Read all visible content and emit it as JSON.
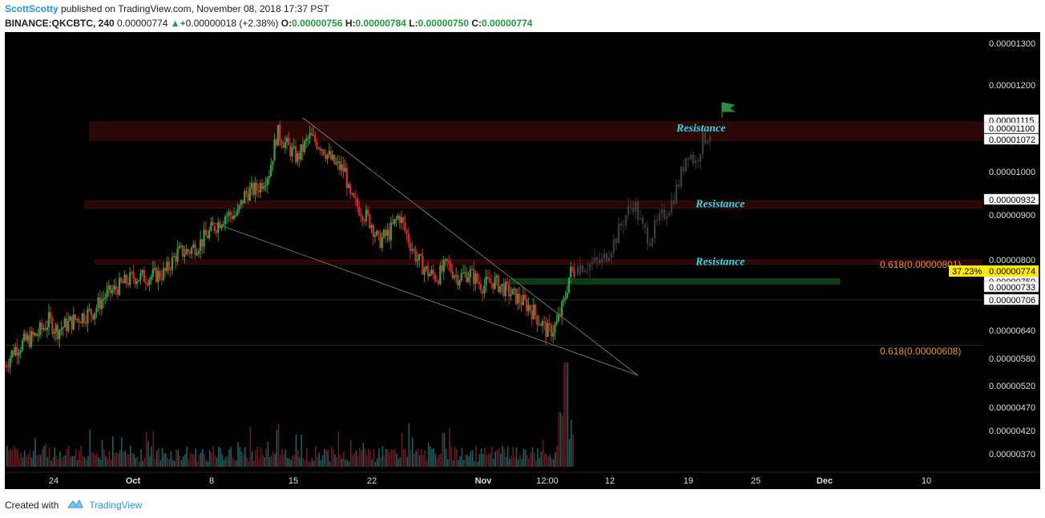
{
  "header": {
    "author": "ScottScotty",
    "published_text": "published on TradingView.com, November 08, 2018 17:37 PST",
    "symbol": "BINANCE:QKCBTC, 240",
    "last": "0.00000774",
    "change_arrow": "▲",
    "change": "+0.00000018 (+2.38%)",
    "o_label": "O:",
    "o_value": "0.00000756",
    "h_label": "H:",
    "h_value": "0.00000784",
    "l_label": "L:",
    "l_value": "0.00000750",
    "c_label": "C:",
    "c_value": "0.00000774"
  },
  "footer": {
    "created_with": "Created with",
    "brand": "TradingView"
  },
  "colors": {
    "background": "#000000",
    "up": "#2e9b3f",
    "down": "#d0262d",
    "resistance_label": "#2fd6e8",
    "fib_label": "#e8902a",
    "price_badge": "#ffea00",
    "zone_fill": "#2a0707",
    "support_zone": "#0d3a12"
  },
  "chart_data": {
    "type": "candlestick",
    "x_ticks": [
      "24",
      "Oct",
      "8",
      "15",
      "22",
      "Nov",
      "12:00",
      "12",
      "19",
      "25",
      "Dec",
      "10"
    ],
    "y_ticks": [
      "0.00001300",
      "0.00001200",
      "0.00001000",
      "0.00000900",
      "0.00000800",
      "0.00000640",
      "0.00000580",
      "0.00000520",
      "0.00000470",
      "0.00000420",
      "0.00000370"
    ],
    "y_labels_highlighted": [
      "0.00001115",
      "0.00001100",
      "0.00001072",
      "0.00000932",
      "0.00000750",
      "0.00000733",
      "0.00000706"
    ],
    "current_price": "0.00000774",
    "current_percent": "37.23%",
    "annotations": [
      {
        "text": "Resistance",
        "price": 1.1e-05
      },
      {
        "text": "Resistance",
        "price": 9.25e-06
      },
      {
        "text": "Resistance",
        "price": 7.95e-06
      }
    ],
    "fib_labels": [
      "0.618(0.00000801)",
      "0.618(0.00000608)"
    ],
    "resistance_zones": [
      {
        "from": 1.072e-05,
        "to": 1.115e-05
      },
      {
        "from": 9.15e-06,
        "to": 9.32e-06
      },
      {
        "from": 7.9e-06,
        "to": 8e-06
      }
    ],
    "support_zone": {
      "from": 7.44e-06,
      "to": 7.56e-06
    },
    "price_path": [
      [
        0,
        5.65e-06
      ],
      [
        12,
        6e-06
      ],
      [
        25,
        6.15e-06
      ],
      [
        40,
        6.3e-06
      ],
      [
        55,
        6.6e-06
      ],
      [
        65,
        6.4e-06
      ],
      [
        80,
        6.55e-06
      ],
      [
        95,
        6.7e-06
      ],
      [
        110,
        6.8e-06
      ],
      [
        125,
        7.15e-06
      ],
      [
        140,
        7.35e-06
      ],
      [
        160,
        7.6e-06
      ],
      [
        180,
        7.6e-06
      ],
      [
        200,
        7.7e-06
      ],
      [
        215,
        8.15e-06
      ],
      [
        230,
        8.2e-06
      ],
      [
        245,
        8.4e-06
      ],
      [
        260,
        8.7e-06
      ],
      [
        275,
        9e-06
      ],
      [
        290,
        9e-06
      ],
      [
        300,
        9.5e-06
      ],
      [
        315,
        9.6e-06
      ],
      [
        330,
        1e-05
      ],
      [
        340,
        1.09e-05
      ],
      [
        352,
        1.06e-05
      ],
      [
        365,
        1.03e-05
      ],
      [
        380,
        1.08e-05
      ],
      [
        395,
        1.06e-05
      ],
      [
        410,
        1.02e-05
      ],
      [
        425,
        1e-05
      ],
      [
        430,
        9.4e-06
      ],
      [
        445,
        9.1e-06
      ],
      [
        458,
        8.8e-06
      ],
      [
        466,
        8.4e-06
      ],
      [
        480,
        8.6e-06
      ],
      [
        492,
        9e-06
      ],
      [
        505,
        8.4e-06
      ],
      [
        515,
        8e-06
      ],
      [
        528,
        7.7e-06
      ],
      [
        540,
        7.6e-06
      ],
      [
        552,
        7.9e-06
      ],
      [
        565,
        7.6e-06
      ],
      [
        580,
        7.7e-06
      ],
      [
        595,
        7.4e-06
      ],
      [
        610,
        7.5e-06
      ],
      [
        625,
        7.3e-06
      ],
      [
        640,
        7.1e-06
      ],
      [
        655,
        6.9e-06
      ],
      [
        668,
        6.6e-06
      ],
      [
        678,
        6.35e-06
      ],
      [
        688,
        6.5e-06
      ],
      [
        698,
        7e-06
      ],
      [
        705,
        7.7e-06
      ],
      [
        712,
        7.74e-06
      ]
    ],
    "projection_path": [
      [
        715,
        7.85e-06
      ],
      [
        730,
        7.9e-06
      ],
      [
        745,
        7.95e-06
      ],
      [
        760,
        8.4e-06
      ],
      [
        775,
        9e-06
      ],
      [
        785,
        9.3e-06
      ],
      [
        795,
        8.7e-06
      ],
      [
        805,
        8.5e-06
      ],
      [
        818,
        8.9e-06
      ],
      [
        832,
        9.3e-06
      ],
      [
        842,
        9.8e-06
      ],
      [
        852,
        1.05e-05
      ],
      [
        862,
        1.02e-05
      ],
      [
        870,
        1.07e-05
      ],
      [
        880,
        1.09e-05
      ]
    ]
  }
}
